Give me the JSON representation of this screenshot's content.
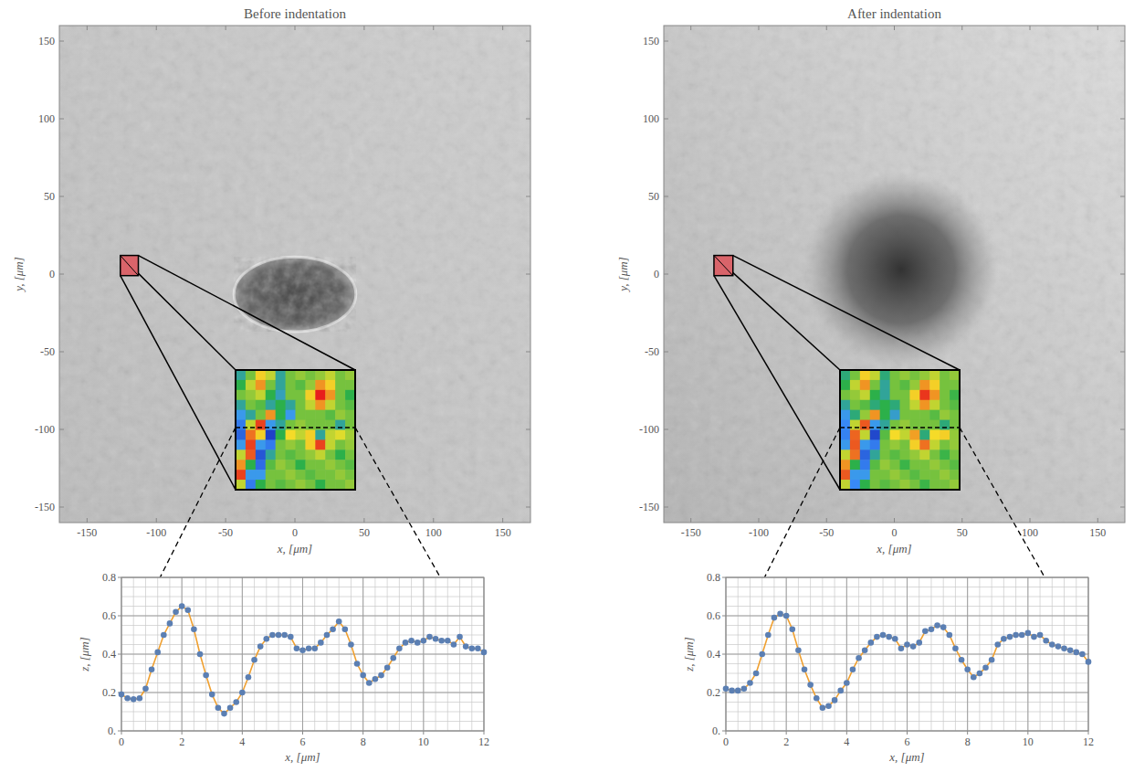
{
  "chart_data": [
    {
      "type": "image",
      "title": "Before indentation",
      "xlabel": "x, [μm]",
      "ylabel": "y, [μm]",
      "xlim": [
        -170,
        170
      ],
      "ylim": [
        -160,
        160
      ],
      "xticks": [
        -150,
        -100,
        -50,
        0,
        50,
        100,
        150
      ],
      "yticks": [
        -150,
        -100,
        -50,
        0,
        50,
        100,
        150
      ],
      "inset": {
        "zoom_region": {
          "x": [
            -126,
            -113
          ],
          "y": [
            -1,
            12
          ]
        },
        "zlim": [
          0.1,
          0.65
        ],
        "cells": [
          [
            0.3,
            0.4,
            0.5,
            0.45,
            0.3,
            0.4,
            0.42,
            0.4,
            0.42,
            0.45,
            0.4,
            0.42
          ],
          [
            0.35,
            0.45,
            0.55,
            0.4,
            0.3,
            0.4,
            0.38,
            0.42,
            0.55,
            0.5,
            0.4,
            0.4
          ],
          [
            0.4,
            0.42,
            0.45,
            0.35,
            0.28,
            0.4,
            0.4,
            0.5,
            0.65,
            0.55,
            0.4,
            0.35
          ],
          [
            0.3,
            0.4,
            0.38,
            0.3,
            0.35,
            0.3,
            0.4,
            0.45,
            0.55,
            0.45,
            0.4,
            0.38
          ],
          [
            0.25,
            0.3,
            0.4,
            0.55,
            0.35,
            0.25,
            0.4,
            0.4,
            0.4,
            0.38,
            0.42,
            0.4
          ],
          [
            0.2,
            0.45,
            0.62,
            0.25,
            0.3,
            0.4,
            0.42,
            0.4,
            0.4,
            0.4,
            0.3,
            0.4
          ],
          [
            0.17,
            0.58,
            0.5,
            0.12,
            0.35,
            0.49,
            0.45,
            0.5,
            0.3,
            0.45,
            0.47,
            0.43
          ],
          [
            0.25,
            0.62,
            0.25,
            0.2,
            0.4,
            0.42,
            0.4,
            0.5,
            0.62,
            0.45,
            0.4,
            0.42
          ],
          [
            0.45,
            0.6,
            0.15,
            0.3,
            0.4,
            0.38,
            0.4,
            0.42,
            0.45,
            0.4,
            0.35,
            0.4
          ],
          [
            0.55,
            0.35,
            0.18,
            0.38,
            0.42,
            0.4,
            0.35,
            0.4,
            0.4,
            0.42,
            0.4,
            0.38
          ],
          [
            0.62,
            0.25,
            0.25,
            0.4,
            0.4,
            0.42,
            0.4,
            0.38,
            0.4,
            0.4,
            0.42,
            0.4
          ],
          [
            0.45,
            0.2,
            0.35,
            0.4,
            0.38,
            0.4,
            0.42,
            0.4,
            0.35,
            0.4,
            0.4,
            0.42
          ]
        ]
      }
    },
    {
      "type": "image",
      "title": "After indentation",
      "xlabel": "x, [μm]",
      "ylabel": "y, [μm]",
      "xlim": [
        -170,
        170
      ],
      "ylim": [
        -160,
        160
      ],
      "xticks": [
        -150,
        -100,
        -50,
        0,
        50,
        100,
        150
      ],
      "yticks": [
        -150,
        -100,
        -50,
        0,
        50,
        100,
        150
      ],
      "inset": {
        "zoom_region": {
          "x": [
            -133,
            -119
          ],
          "y": [
            -1,
            12
          ]
        },
        "zlim": [
          0.1,
          0.65
        ],
        "cells": [
          [
            0.32,
            0.4,
            0.5,
            0.45,
            0.32,
            0.4,
            0.42,
            0.4,
            0.42,
            0.45,
            0.4,
            0.42
          ],
          [
            0.35,
            0.45,
            0.55,
            0.4,
            0.3,
            0.4,
            0.38,
            0.42,
            0.55,
            0.5,
            0.4,
            0.4
          ],
          [
            0.4,
            0.42,
            0.45,
            0.35,
            0.3,
            0.4,
            0.4,
            0.5,
            0.63,
            0.55,
            0.4,
            0.36
          ],
          [
            0.3,
            0.4,
            0.38,
            0.32,
            0.35,
            0.32,
            0.4,
            0.45,
            0.55,
            0.45,
            0.4,
            0.38
          ],
          [
            0.25,
            0.32,
            0.42,
            0.55,
            0.35,
            0.27,
            0.4,
            0.4,
            0.4,
            0.38,
            0.42,
            0.4
          ],
          [
            0.22,
            0.45,
            0.6,
            0.25,
            0.3,
            0.4,
            0.42,
            0.4,
            0.4,
            0.4,
            0.32,
            0.4
          ],
          [
            0.21,
            0.59,
            0.45,
            0.13,
            0.38,
            0.49,
            0.45,
            0.54,
            0.32,
            0.49,
            0.5,
            0.42
          ],
          [
            0.25,
            0.6,
            0.25,
            0.2,
            0.4,
            0.42,
            0.4,
            0.5,
            0.58,
            0.45,
            0.4,
            0.42
          ],
          [
            0.45,
            0.58,
            0.17,
            0.3,
            0.4,
            0.38,
            0.4,
            0.42,
            0.45,
            0.4,
            0.36,
            0.4
          ],
          [
            0.55,
            0.35,
            0.2,
            0.38,
            0.42,
            0.4,
            0.36,
            0.4,
            0.4,
            0.42,
            0.4,
            0.38
          ],
          [
            0.6,
            0.25,
            0.25,
            0.4,
            0.4,
            0.42,
            0.4,
            0.38,
            0.4,
            0.4,
            0.42,
            0.4
          ],
          [
            0.45,
            0.22,
            0.35,
            0.4,
            0.38,
            0.4,
            0.42,
            0.4,
            0.36,
            0.4,
            0.4,
            0.42
          ]
        ]
      }
    },
    {
      "type": "line",
      "xlabel": "x, [μm]",
      "ylabel": "z, [μm]",
      "grid": true,
      "xlim": [
        0,
        12
      ],
      "ylim": [
        0,
        0.8
      ],
      "xticks": [
        0,
        2,
        4,
        6,
        8,
        10,
        12
      ],
      "yticks": [
        {
          "value": 0,
          "label": "0."
        },
        0.2,
        0.4,
        0.6,
        0.8
      ],
      "minor_xticks": [
        0,
        0.4,
        0.8,
        1.2,
        1.6,
        2,
        2.4,
        2.8,
        3.2,
        3.6,
        4,
        4.4,
        4.8,
        5.2,
        5.6,
        6,
        6.4,
        6.8,
        7.2,
        7.6,
        8,
        8.4,
        8.8,
        9.2,
        9.6,
        10,
        10.4,
        10.8,
        11.2,
        11.6,
        12
      ],
      "minor_yticks": [
        0,
        0.05,
        0.1,
        0.15,
        0.2,
        0.25,
        0.3,
        0.35,
        0.4,
        0.45,
        0.5,
        0.55,
        0.6,
        0.65,
        0.7,
        0.75,
        0.8
      ],
      "x": [
        0,
        0.2,
        0.4,
        0.6,
        0.8,
        1,
        1.2,
        1.4,
        1.6,
        1.8,
        2,
        2.2,
        2.4,
        2.6,
        2.8,
        3,
        3.2,
        3.4,
        3.6,
        3.8,
        4,
        4.2,
        4.4,
        4.6,
        4.8,
        5,
        5.2,
        5.4,
        5.6,
        5.8,
        6,
        6.2,
        6.4,
        6.6,
        6.8,
        7,
        7.2,
        7.4,
        7.6,
        7.8,
        8,
        8.2,
        8.4,
        8.6,
        8.8,
        9,
        9.2,
        9.4,
        9.6,
        9.8,
        10,
        10.2,
        10.4,
        10.6,
        10.8,
        11,
        11.2,
        11.4,
        11.6,
        11.8,
        12
      ],
      "series": [
        {
          "color": "#f0a030",
          "marker": "circle",
          "values": [
            0.19,
            0.17,
            0.165,
            0.17,
            0.22,
            0.32,
            0.41,
            0.5,
            0.56,
            0.62,
            0.65,
            0.63,
            0.53,
            0.4,
            0.29,
            0.19,
            0.12,
            0.09,
            0.12,
            0.15,
            0.2,
            0.28,
            0.37,
            0.44,
            0.48,
            0.5,
            0.5,
            0.5,
            0.49,
            0.43,
            0.42,
            0.43,
            0.43,
            0.46,
            0.5,
            0.53,
            0.57,
            0.53,
            0.45,
            0.35,
            0.29,
            0.25,
            0.27,
            0.29,
            0.33,
            0.38,
            0.43,
            0.46,
            0.47,
            0.46,
            0.47,
            0.49,
            0.48,
            0.47,
            0.47,
            0.45,
            0.49,
            0.44,
            0.43,
            0.43,
            0.41
          ]
        }
      ]
    },
    {
      "type": "line",
      "xlabel": "x, [μm]",
      "ylabel": "z, [μm]",
      "grid": true,
      "xlim": [
        0,
        12
      ],
      "ylim": [
        0,
        0.8
      ],
      "xticks": [
        0,
        2,
        4,
        6,
        8,
        10,
        12
      ],
      "yticks": [
        {
          "value": 0,
          "label": "0."
        },
        0.2,
        0.4,
        0.6,
        0.8
      ],
      "minor_xticks": [
        0,
        0.4,
        0.8,
        1.2,
        1.6,
        2,
        2.4,
        2.8,
        3.2,
        3.6,
        4,
        4.4,
        4.8,
        5.2,
        5.6,
        6,
        6.4,
        6.8,
        7.2,
        7.6,
        8,
        8.4,
        8.8,
        9.2,
        9.6,
        10,
        10.4,
        10.8,
        11.2,
        11.6,
        12
      ],
      "minor_yticks": [
        0,
        0.05,
        0.1,
        0.15,
        0.2,
        0.25,
        0.3,
        0.35,
        0.4,
        0.45,
        0.5,
        0.55,
        0.6,
        0.65,
        0.7,
        0.75,
        0.8
      ],
      "x": [
        0,
        0.2,
        0.4,
        0.6,
        0.8,
        1,
        1.2,
        1.4,
        1.6,
        1.8,
        2,
        2.2,
        2.4,
        2.6,
        2.8,
        3,
        3.2,
        3.4,
        3.6,
        3.8,
        4,
        4.2,
        4.4,
        4.6,
        4.8,
        5,
        5.2,
        5.4,
        5.6,
        5.8,
        6,
        6.2,
        6.4,
        6.6,
        6.8,
        7,
        7.2,
        7.4,
        7.6,
        7.8,
        8,
        8.2,
        8.4,
        8.6,
        8.8,
        9,
        9.2,
        9.4,
        9.6,
        9.8,
        10,
        10.2,
        10.4,
        10.6,
        10.8,
        11,
        11.2,
        11.4,
        11.6,
        11.8,
        12
      ],
      "series": [
        {
          "color": "#f0a030",
          "marker": "circle",
          "values": [
            0.22,
            0.21,
            0.21,
            0.22,
            0.25,
            0.3,
            0.4,
            0.5,
            0.59,
            0.61,
            0.6,
            0.53,
            0.42,
            0.32,
            0.24,
            0.17,
            0.12,
            0.13,
            0.16,
            0.21,
            0.25,
            0.32,
            0.38,
            0.42,
            0.46,
            0.49,
            0.5,
            0.49,
            0.48,
            0.43,
            0.45,
            0.44,
            0.46,
            0.52,
            0.53,
            0.55,
            0.54,
            0.5,
            0.43,
            0.37,
            0.32,
            0.28,
            0.3,
            0.33,
            0.37,
            0.45,
            0.48,
            0.49,
            0.5,
            0.5,
            0.51,
            0.49,
            0.5,
            0.47,
            0.45,
            0.44,
            0.43,
            0.42,
            0.41,
            0.4,
            0.36
          ]
        }
      ]
    }
  ]
}
